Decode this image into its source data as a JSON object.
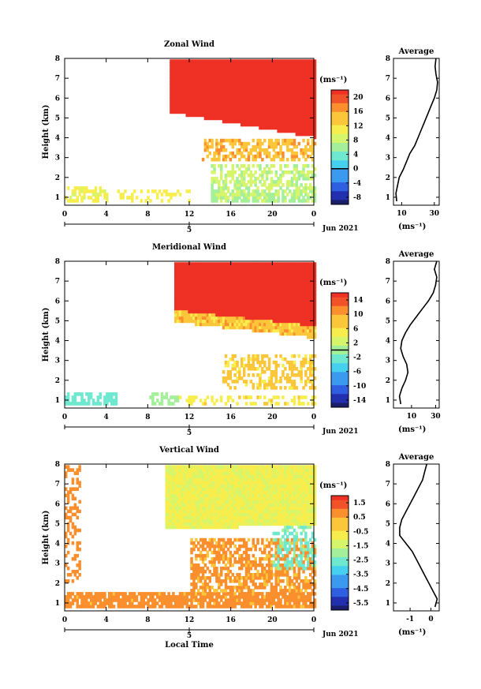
{
  "chart_data": [
    {
      "type": "heatmap",
      "title": "Zonal Wind",
      "ylabel": "Height (km)",
      "xlabel": "",
      "xlim": [
        0,
        24
      ],
      "ylim": [
        0.6,
        8.0
      ],
      "x_ticks": [
        "0",
        "4",
        "8",
        "12",
        "16",
        "20",
        "0"
      ],
      "y_ticks": [
        "1",
        "2",
        "3",
        "4",
        "5",
        "6",
        "7",
        "8"
      ],
      "date_tick": "5",
      "date_label": "Jun 2021",
      "colorbar": {
        "unit": "(ms⁻¹)",
        "range": [
          -10,
          22
        ],
        "zero_line": 0,
        "tick_labels": [
          "20",
          "16",
          "12",
          "8",
          "4",
          "0",
          "-4",
          "-8"
        ]
      },
      "average_profile": {
        "title": "Average",
        "xlabel": "(ms⁻¹)",
        "x_ticks": [
          "10",
          "30"
        ],
        "xlim": [
          5,
          33
        ],
        "height": [
          0.8,
          1.2,
          1.6,
          2.0,
          2.4,
          2.8,
          3.2,
          3.6,
          4.0,
          4.4,
          4.8,
          5.2,
          5.6,
          6.0,
          6.4,
          6.8,
          7.2,
          7.6,
          8.0
        ],
        "value": [
          7,
          6.5,
          7.5,
          8.5,
          11,
          13,
          15,
          18,
          20,
          22,
          24,
          26,
          28,
          30,
          31.5,
          32,
          31,
          30.5,
          31
        ]
      }
    },
    {
      "type": "heatmap",
      "title": "Meridional Wind",
      "ylabel": "Height (km)",
      "xlabel": "",
      "xlim": [
        0,
        24
      ],
      "ylim": [
        0.6,
        8.0
      ],
      "x_ticks": [
        "0",
        "4",
        "8",
        "12",
        "16",
        "20",
        "0"
      ],
      "y_ticks": [
        "1",
        "2",
        "3",
        "4",
        "5",
        "6",
        "7",
        "8"
      ],
      "date_tick": "5",
      "date_label": "Jun 2021",
      "colorbar": {
        "unit": "(ms⁻¹)",
        "range": [
          -16,
          16
        ],
        "zero_line": 0,
        "tick_labels": [
          "14",
          "10",
          "6",
          "2",
          "-2",
          "-6",
          "-10",
          "-14"
        ]
      },
      "average_profile": {
        "title": "Average",
        "xlabel": "(ms⁻¹)",
        "x_ticks": [
          "10",
          "30"
        ],
        "xlim": [
          -5,
          33
        ],
        "height": [
          0.8,
          1.2,
          1.6,
          2.0,
          2.4,
          2.8,
          3.2,
          3.6,
          4.0,
          4.4,
          4.8,
          5.2,
          5.6,
          6.0,
          6.4,
          6.8,
          7.2,
          7.6,
          8.0
        ],
        "value": [
          1,
          0,
          2,
          5,
          7,
          6,
          3,
          1,
          2,
          5,
          9,
          14,
          19,
          24,
          28,
          30,
          31,
          29,
          31
        ]
      }
    },
    {
      "type": "heatmap",
      "title": "Vertical Wind",
      "ylabel": "Height (km)",
      "xlabel": "Local Time",
      "xlim": [
        0,
        24
      ],
      "ylim": [
        0.6,
        8.0
      ],
      "x_ticks": [
        "0",
        "4",
        "8",
        "12",
        "16",
        "20",
        "0"
      ],
      "y_ticks": [
        "1",
        "2",
        "3",
        "4",
        "5",
        "6",
        "7",
        "8"
      ],
      "date_tick": "5",
      "date_label": "Jun 2021",
      "colorbar": {
        "unit": "(ms⁻¹)",
        "range": [
          -6,
          2
        ],
        "zero_line": null,
        "tick_labels": [
          "1.5",
          "0.5",
          "-0.5",
          "-1.5",
          "-2.5",
          "-3.5",
          "-4.5",
          "-5.5"
        ]
      },
      "average_profile": {
        "title": "Average",
        "xlabel": "(ms⁻¹)",
        "x_ticks": [
          "-1",
          "0"
        ],
        "xlim": [
          -1.8,
          0.4
        ],
        "height": [
          0.8,
          1.2,
          1.6,
          2.0,
          2.4,
          2.8,
          3.2,
          3.6,
          4.0,
          4.4,
          4.8,
          5.2,
          5.6,
          6.0,
          6.4,
          6.8,
          7.2,
          7.6,
          8.0
        ],
        "value": [
          0.2,
          0.3,
          0.1,
          -0.1,
          -0.3,
          -0.5,
          -0.7,
          -0.9,
          -1.2,
          -1.5,
          -1.5,
          -1.4,
          -1.2,
          -1.0,
          -0.8,
          -0.6,
          -0.4,
          -0.3,
          -0.2
        ]
      }
    }
  ]
}
